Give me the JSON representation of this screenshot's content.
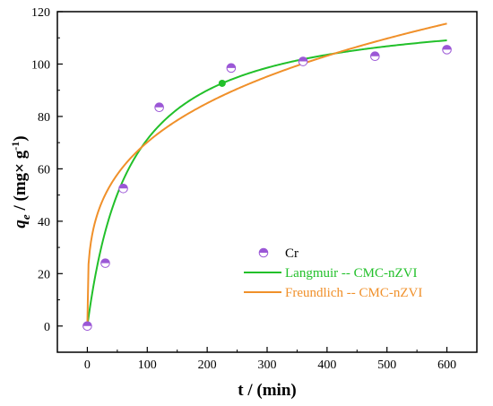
{
  "chart_data": {
    "type": "scatter",
    "xlabel": "t / (min)",
    "ylabel": {
      "q": "q",
      "sub": "e",
      "unit": " / (mg× g",
      "sup": "-1",
      "close": ")"
    },
    "xlim": [
      -50,
      650
    ],
    "ylim": [
      -10,
      120
    ],
    "xticks": [
      0,
      100,
      200,
      300,
      400,
      500,
      600
    ],
    "yticks": [
      0,
      20,
      40,
      60,
      80,
      100,
      120
    ],
    "grid": false,
    "legend_position": "bottom-right",
    "series": [
      {
        "name": "Cr",
        "kind": "scatter",
        "color": "#9b57d6",
        "points": [
          [
            0,
            0
          ],
          [
            30,
            24
          ],
          [
            60,
            52.5
          ],
          [
            120,
            83.5
          ],
          [
            240,
            98.5
          ],
          [
            360,
            101
          ],
          [
            480,
            103
          ],
          [
            600,
            105.5
          ]
        ]
      },
      {
        "name": "Langmuir -- CMC-nZVI",
        "kind": "line",
        "color": "#22c02a",
        "model": "langmuir",
        "params": {
          "qe": 122,
          "k2": 0.000115
        },
        "highlight_x": 225
      },
      {
        "name": "Freundlich -- CMC-nZVI",
        "kind": "line",
        "color": "#f0902a",
        "model": "freundlich",
        "params": {
          "k": 19.5,
          "n": 0.278
        }
      }
    ]
  }
}
